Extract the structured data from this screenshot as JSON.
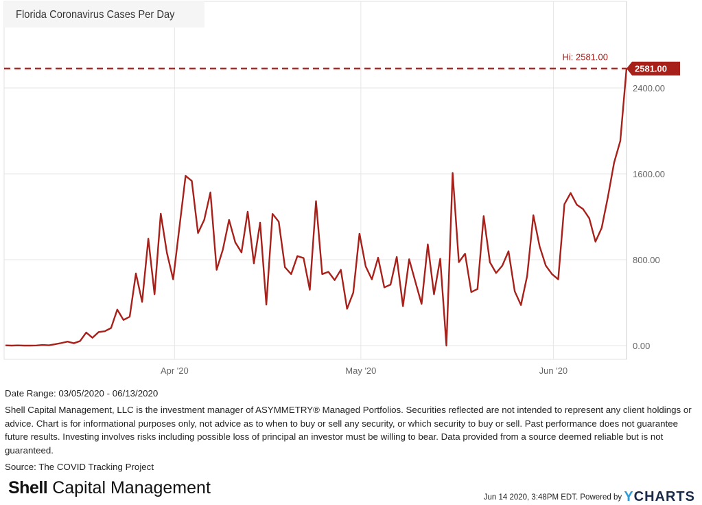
{
  "title": "Florida Coronavirus Cases Per Day",
  "chart_data": {
    "type": "line",
    "title": "Florida Coronavirus Cases Per Day",
    "xlabel": "",
    "ylabel": "",
    "x_start": "2020-03-05",
    "x_end": "2020-06-13",
    "x_ticks": [
      {
        "label": "Apr '20",
        "day_index": 27
      },
      {
        "label": "May '20",
        "day_index": 57
      },
      {
        "label": "Jun '20",
        "day_index": 88
      }
    ],
    "y_ticks": [
      "0.00",
      "800.00",
      "1600.00",
      "2400.00"
    ],
    "y_tick_values": [
      0,
      800,
      1600,
      2400
    ],
    "ylim": [
      -40,
      3220
    ],
    "grid": true,
    "series": [
      {
        "name": "Florida Coronavirus Cases Per Day",
        "color": "#a8201a",
        "values": [
          2,
          0,
          2,
          0,
          0,
          1,
          6,
          3,
          13,
          24,
          37,
          22,
          42,
          122,
          73,
          126,
          134,
          164,
          335,
          239,
          269,
          672,
          407,
          996,
          478,
          1229,
          862,
          617,
          1099,
          1581,
          1534,
          1048,
          1171,
          1427,
          706,
          894,
          1171,
          962,
          868,
          1248,
          766,
          1146,
          382,
          1227,
          1154,
          730,
          666,
          834,
          815,
          520,
          1346,
          666,
          687,
          610,
          706,
          343,
          493,
          1043,
          738,
          617,
          819,
          542,
          568,
          826,
          367,
          804,
          595,
          388,
          943,
          478,
          809,
          0,
          1608,
          777,
          856,
          499,
          527,
          1207,
          777,
          676,
          745,
          879,
          506,
          378,
          649,
          1214,
          926,
          745,
          666,
          617,
          1317,
          1421,
          1312,
          1272,
          1186,
          968,
          1096,
          1384,
          1704,
          1907,
          2581
        ]
      }
    ],
    "annotations": {
      "hi_label": "Hi: 2581.00",
      "hi_value": 2581,
      "last_value_label": "2581.00"
    }
  },
  "footer": {
    "date_range": "Date Range: 03/05/2020 - 06/13/2020",
    "disclaimer": "Shell Capital Management, LLC is the investment manager of ASYMMETRY® Managed Portfolios. Securities reflected are not intended to represent any client holdings or advice. Chart is for informational purposes only, not advice as to when to buy or sell any security, or which security to buy or sell. Past performance does not guarantee future results. Investing involves risks including possible loss of principal an investor must be willing to bear. Data provided from a source deemed reliable but is not guaranteed.",
    "source": "Source: The COVID Tracking Project",
    "logo_bold": "Shell",
    "logo_rest": " Capital Management",
    "timestamp": "Jun 14 2020, 3:48PM EDT.  Powered by ",
    "ycharts_y": "Y",
    "ycharts_rest": "CHARTS"
  }
}
